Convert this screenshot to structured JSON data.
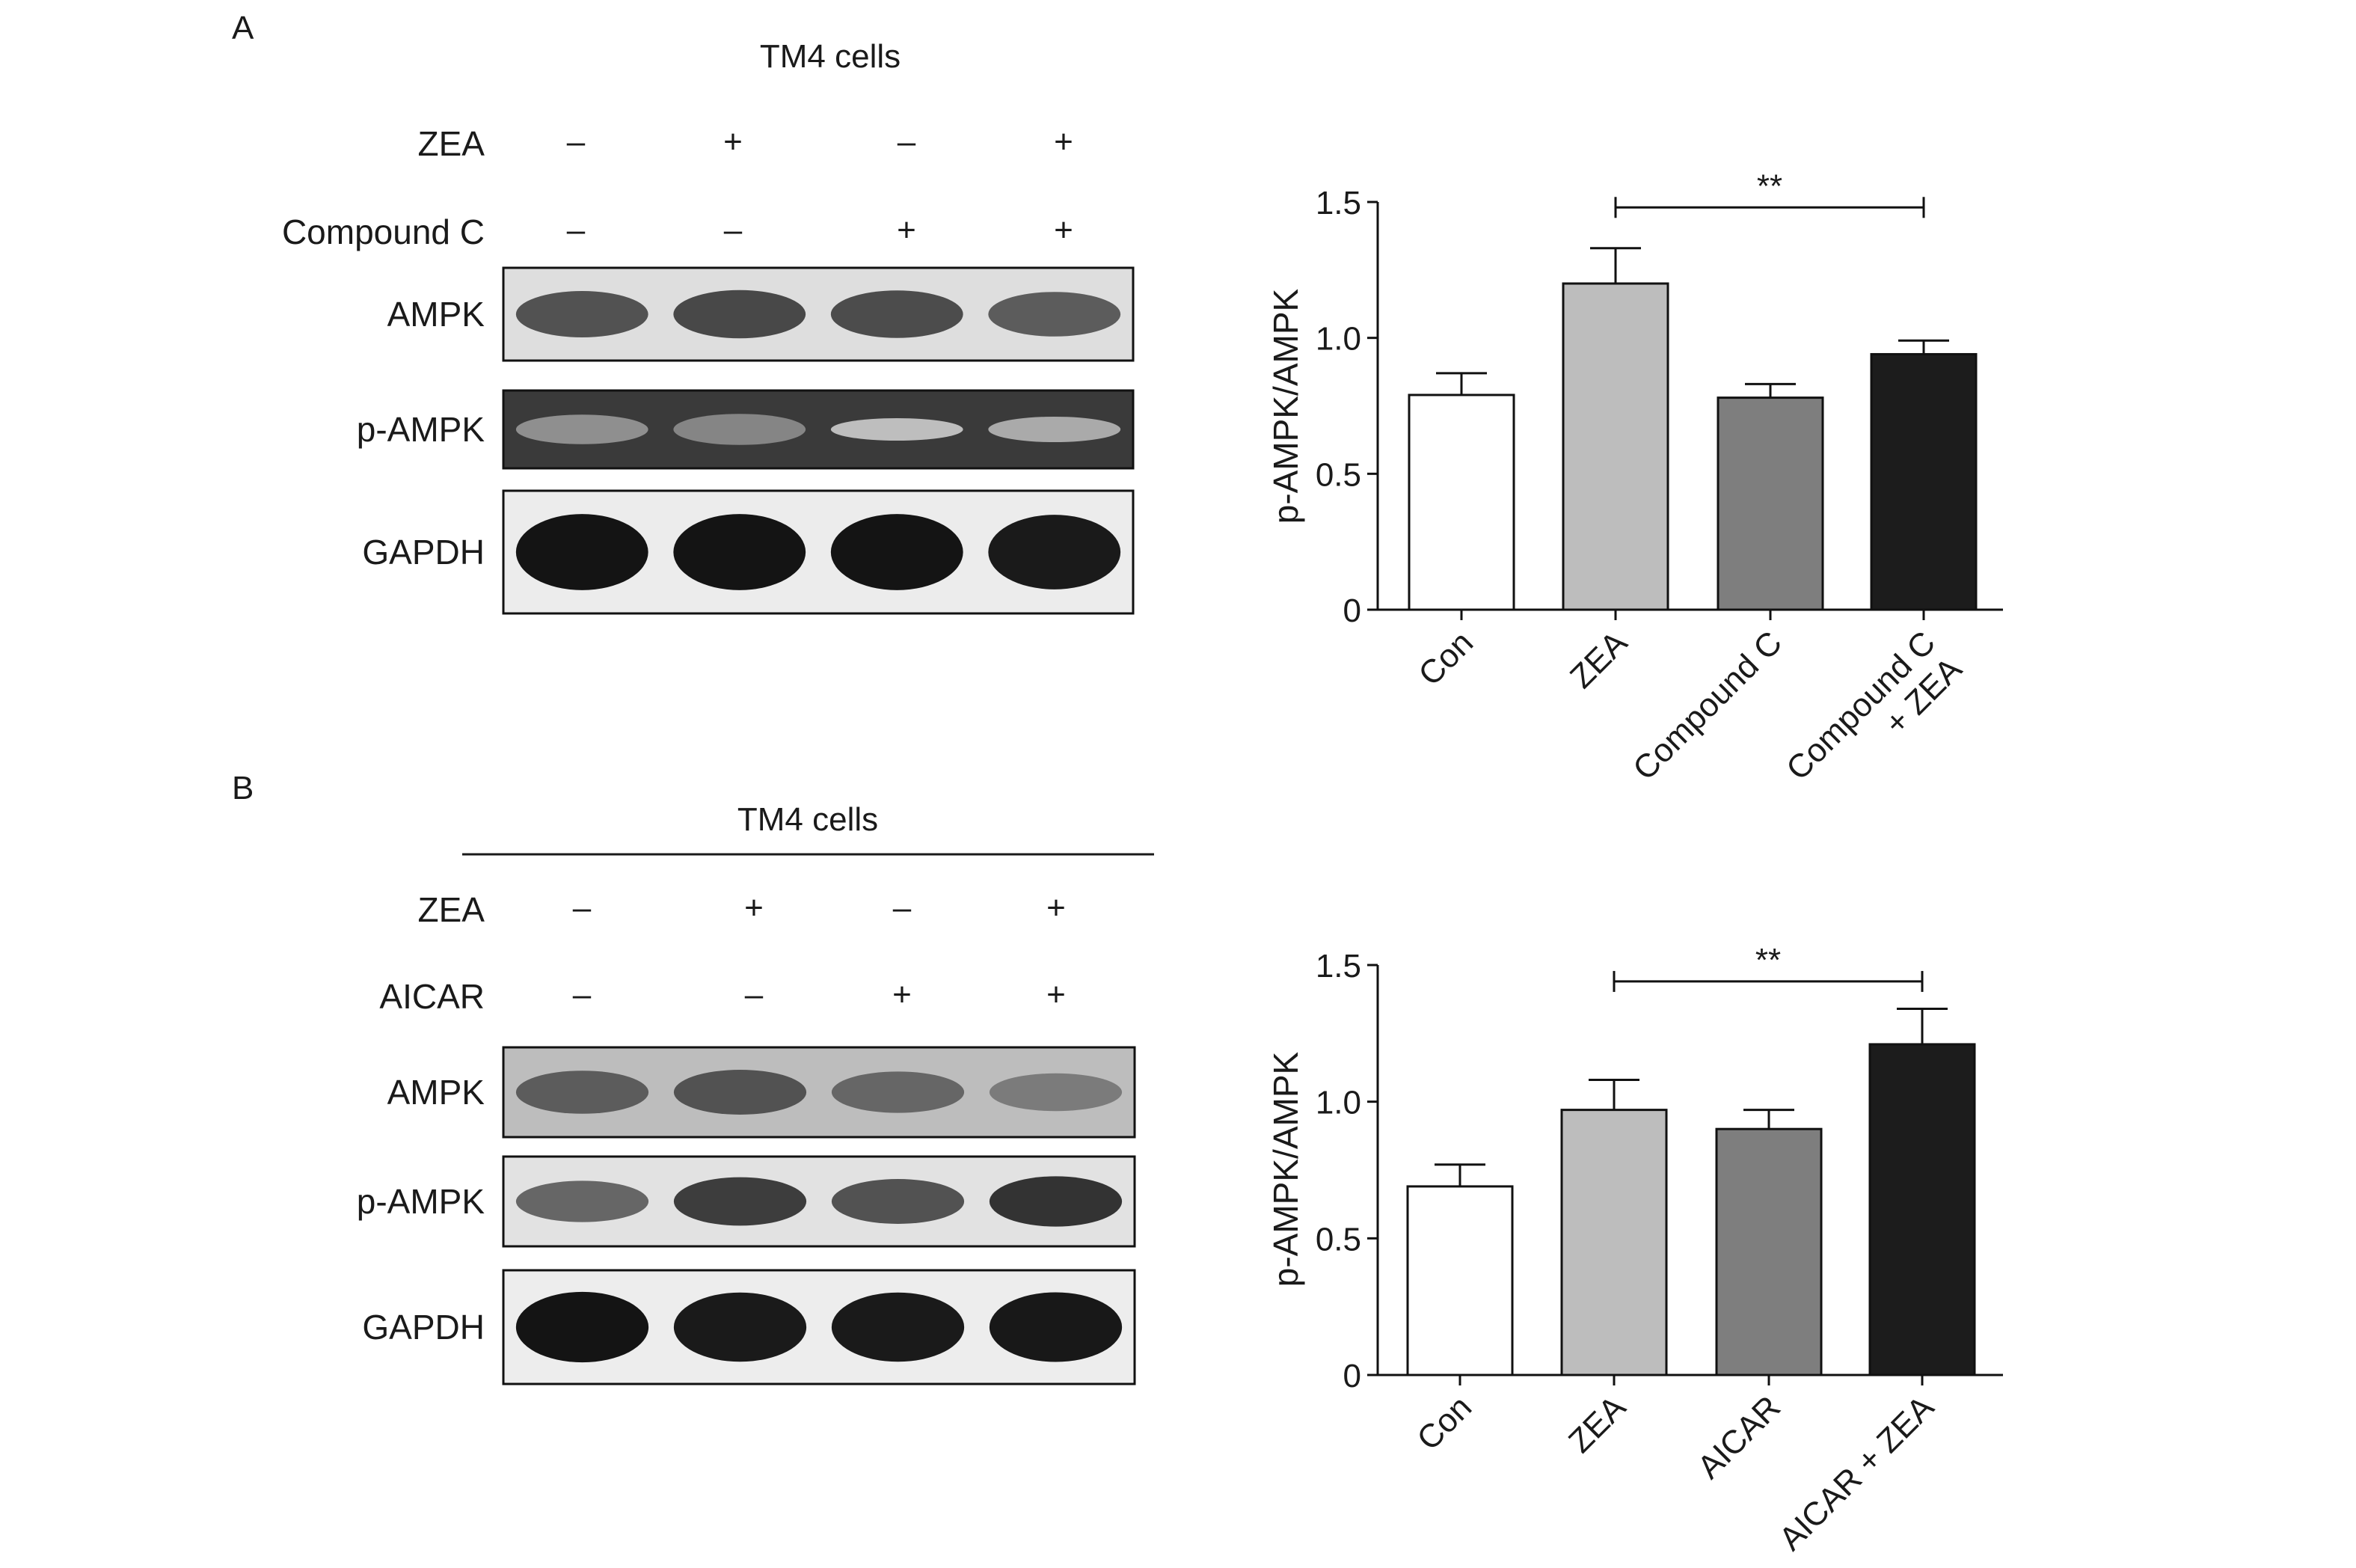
{
  "panels": [
    {
      "label": "A",
      "blot": {
        "title": "TM4 cells",
        "title_underline": false,
        "treatments": [
          {
            "name": "ZEA",
            "signs": [
              "–",
              "+",
              "–",
              "+"
            ]
          },
          {
            "name": "Compound C",
            "signs": [
              "–",
              "–",
              "+",
              "+"
            ]
          }
        ],
        "rows": [
          {
            "name": "AMPK",
            "bands": [
              0.65,
              0.7,
              0.68,
              0.6
            ],
            "background": "#dedede"
          },
          {
            "name": "p-AMPK",
            "bands": [
              0.35,
              0.4,
              0.12,
              0.22
            ],
            "background": "#3a3a3a"
          },
          {
            "name": "GAPDH",
            "bands": [
              0.95,
              0.95,
              0.95,
              0.92
            ],
            "background": "#ececec"
          }
        ]
      }
    },
    {
      "label": "B",
      "blot": {
        "title": "TM4 cells",
        "title_underline": true,
        "treatments": [
          {
            "name": "ZEA",
            "signs": [
              "–",
              "+",
              "–",
              "+"
            ]
          },
          {
            "name": "AICAR",
            "signs": [
              "–",
              "–",
              "+",
              "+"
            ]
          }
        ],
        "rows": [
          {
            "name": "AMPK",
            "bands": [
              0.6,
              0.65,
              0.55,
              0.45
            ],
            "background": "#bdbdbd"
          },
          {
            "name": "p-AMPK",
            "bands": [
              0.55,
              0.75,
              0.65,
              0.8
            ],
            "background": "#e2e2e2"
          },
          {
            "name": "GAPDH",
            "bands": [
              0.95,
              0.92,
              0.92,
              0.93
            ],
            "background": "#ededed"
          }
        ]
      }
    }
  ],
  "chart_data": [
    {
      "type": "bar",
      "categories": [
        "Con",
        "ZEA",
        "Compound C",
        "Compound C\n+ ZEA"
      ],
      "values": [
        0.79,
        1.2,
        0.78,
        0.94
      ],
      "errors": [
        0.08,
        0.13,
        0.05,
        0.05
      ],
      "bar_colors": [
        "#ffffff",
        "#bdbdbd",
        "#7e7e7e",
        "#1c1c1c"
      ],
      "xlabel": "",
      "ylabel": "p-AMPK/AMPK",
      "ylim": [
        0,
        1.5
      ],
      "yticks": [
        0,
        0.5,
        1.0,
        1.5
      ],
      "ytick_labels": [
        "0",
        "0.5",
        "1.0",
        "1.5"
      ],
      "significance": {
        "from": 1,
        "to": 3,
        "label": "**",
        "y": 1.48
      },
      "grid": false
    },
    {
      "type": "bar",
      "categories": [
        "Con",
        "ZEA",
        "AICAR",
        "AICAR + ZEA"
      ],
      "values": [
        0.69,
        0.97,
        0.9,
        1.21
      ],
      "errors": [
        0.08,
        0.11,
        0.07,
        0.13
      ],
      "bar_colors": [
        "#ffffff",
        "#bdbdbd",
        "#7e7e7e",
        "#1c1c1c"
      ],
      "xlabel": "",
      "ylabel": "p-AMPK/AMPK",
      "ylim": [
        0,
        1.5
      ],
      "yticks": [
        0,
        0.5,
        1.0,
        1.5
      ],
      "ytick_labels": [
        "0",
        "0.5",
        "1.0",
        "1.5"
      ],
      "significance": {
        "from": 1,
        "to": 3,
        "label": "**",
        "y": 1.44
      },
      "grid": false
    }
  ]
}
